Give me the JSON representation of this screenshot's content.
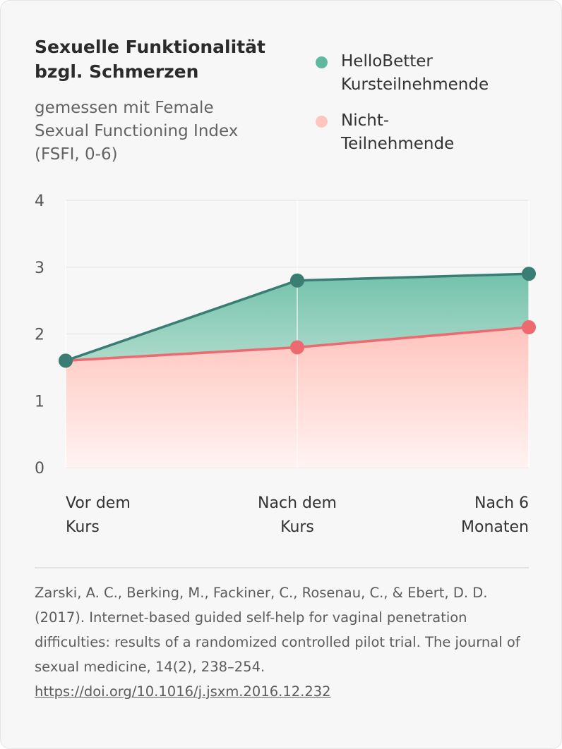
{
  "title": "Sexuelle Funktionalität bzgl. Schmerzen",
  "subtitle": "gemessen mit Female Sexual Functioning Index (FSFI, 0-6)",
  "colors": {
    "series_a": "#3a7d73",
    "series_a_fill": "#6cbfa7",
    "series_b": "#ec6a70",
    "series_b_fill": "#ffc4bd",
    "legend_a": "#5fb99e",
    "legend_b": "#ffc6c0"
  },
  "chart_data": {
    "type": "area",
    "categories": [
      "Vor dem Kurs",
      "Nach dem Kurs",
      "Nach 6 Monaten"
    ],
    "category_lines": [
      [
        "Vor dem",
        "Kurs"
      ],
      [
        "Nach dem",
        "Kurs"
      ],
      [
        "Nach 6",
        "Monaten"
      ]
    ],
    "series": [
      {
        "name": "HelloBetter Kursteilnehmende",
        "values": [
          1.6,
          2.8,
          2.9
        ]
      },
      {
        "name": "Nicht-Teilnehmende",
        "values": [
          1.6,
          1.8,
          2.1
        ]
      }
    ],
    "ylim": [
      0,
      4
    ],
    "yticks": [
      "0",
      "1",
      "2",
      "3",
      "4"
    ],
    "grid": true,
    "legend_position": "top-right"
  },
  "legend": [
    {
      "lines": [
        "HelloBetter",
        "Kursteilnehmende"
      ]
    },
    {
      "lines": [
        "Nicht-",
        "Teilnehmende"
      ]
    }
  ],
  "citation": {
    "text": "Zarski, A. C., Berking, M., Fackiner, C., Rosenau, C., & Ebert, D. D. (2017). Internet-based guided self-help for vaginal penetration difficulties: results of a randomized controlled pilot trial. The journal of sexual medicine, 14(2), 238–254. ",
    "link": "https://doi.org/10.1016/j.jsxm.2016.12.232"
  }
}
